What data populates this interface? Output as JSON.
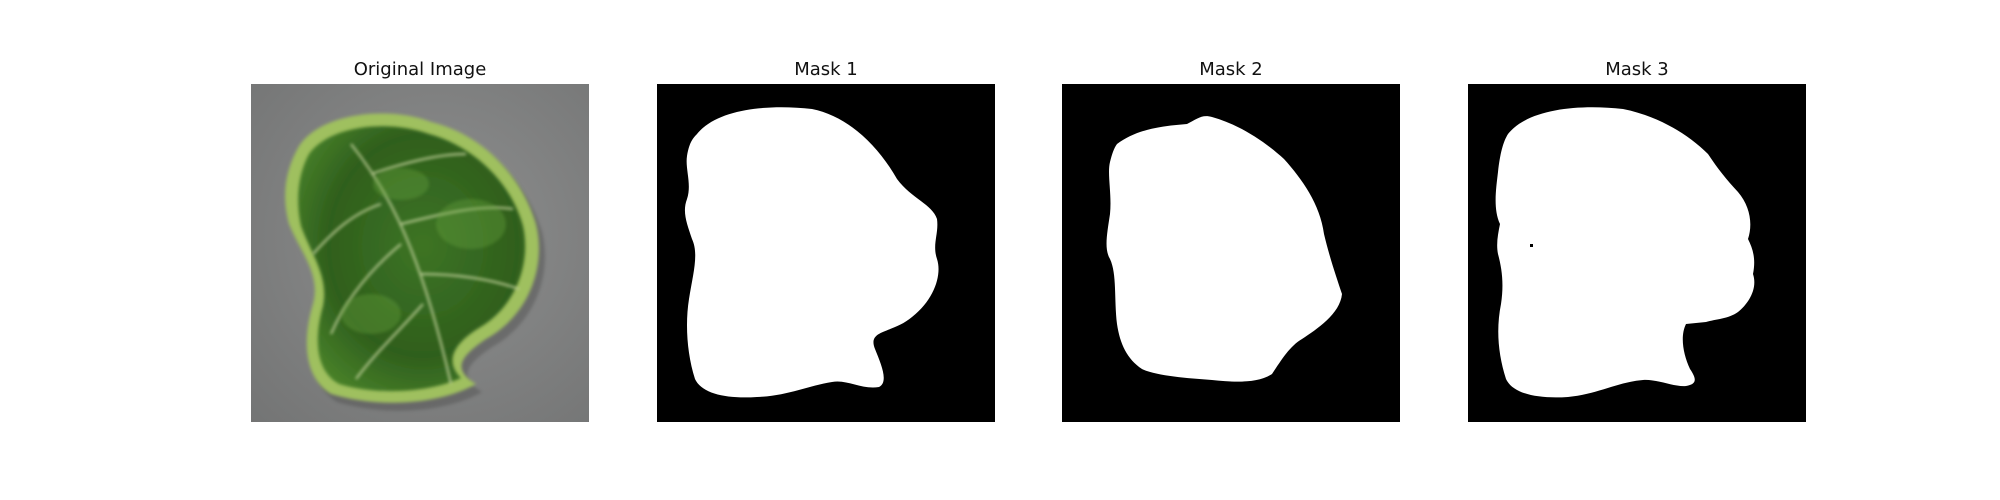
{
  "figure": {
    "panels": [
      {
        "title": "Original Image",
        "content": "photo"
      },
      {
        "title": "Mask 1",
        "content": "binary-mask"
      },
      {
        "title": "Mask 2",
        "content": "binary-mask"
      },
      {
        "title": "Mask 3",
        "content": "binary-mask"
      }
    ]
  },
  "colors": {
    "background": "#ffffff",
    "mask_background": "#000000",
    "mask_foreground": "#ffffff",
    "photo_background": "#8a8b8b",
    "leaf_dark": "#2f5f1f",
    "leaf_mid": "#4c8a2b",
    "leaf_light": "#93b85a",
    "vein": "#c7d5a0"
  }
}
